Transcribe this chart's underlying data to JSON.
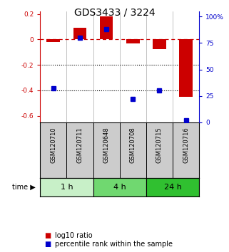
{
  "title": "GDS3433 / 3224",
  "samples": [
    "GSM120710",
    "GSM120711",
    "GSM120648",
    "GSM120708",
    "GSM120715",
    "GSM120716"
  ],
  "log10_ratio": [
    -0.02,
    0.09,
    0.18,
    -0.03,
    -0.075,
    -0.45
  ],
  "percentile_rank": [
    32,
    80,
    88,
    22,
    30,
    2
  ],
  "time_groups": [
    {
      "label": "1 h",
      "samples": [
        0,
        1
      ],
      "color": "#c8f0c8"
    },
    {
      "label": "4 h",
      "samples": [
        2,
        3
      ],
      "color": "#70d870"
    },
    {
      "label": "24 h",
      "samples": [
        4,
        5
      ],
      "color": "#30c030"
    }
  ],
  "bar_color": "#cc0000",
  "dot_color": "#0000cc",
  "zero_line_color": "#cc0000",
  "dotted_line_color": "#000000",
  "ylim_left": [
    -0.65,
    0.22
  ],
  "ylim_right": [
    0,
    105
  ],
  "yticks_left": [
    0.2,
    0.0,
    -0.2,
    -0.4,
    -0.6
  ],
  "yticks_right": [
    100,
    75,
    50,
    25,
    0
  ],
  "bg_color": "#ffffff",
  "plot_bg": "#ffffff",
  "sample_box_color": "#cccccc",
  "title_fontsize": 10,
  "tick_fontsize": 6.5,
  "legend_fontsize": 7
}
